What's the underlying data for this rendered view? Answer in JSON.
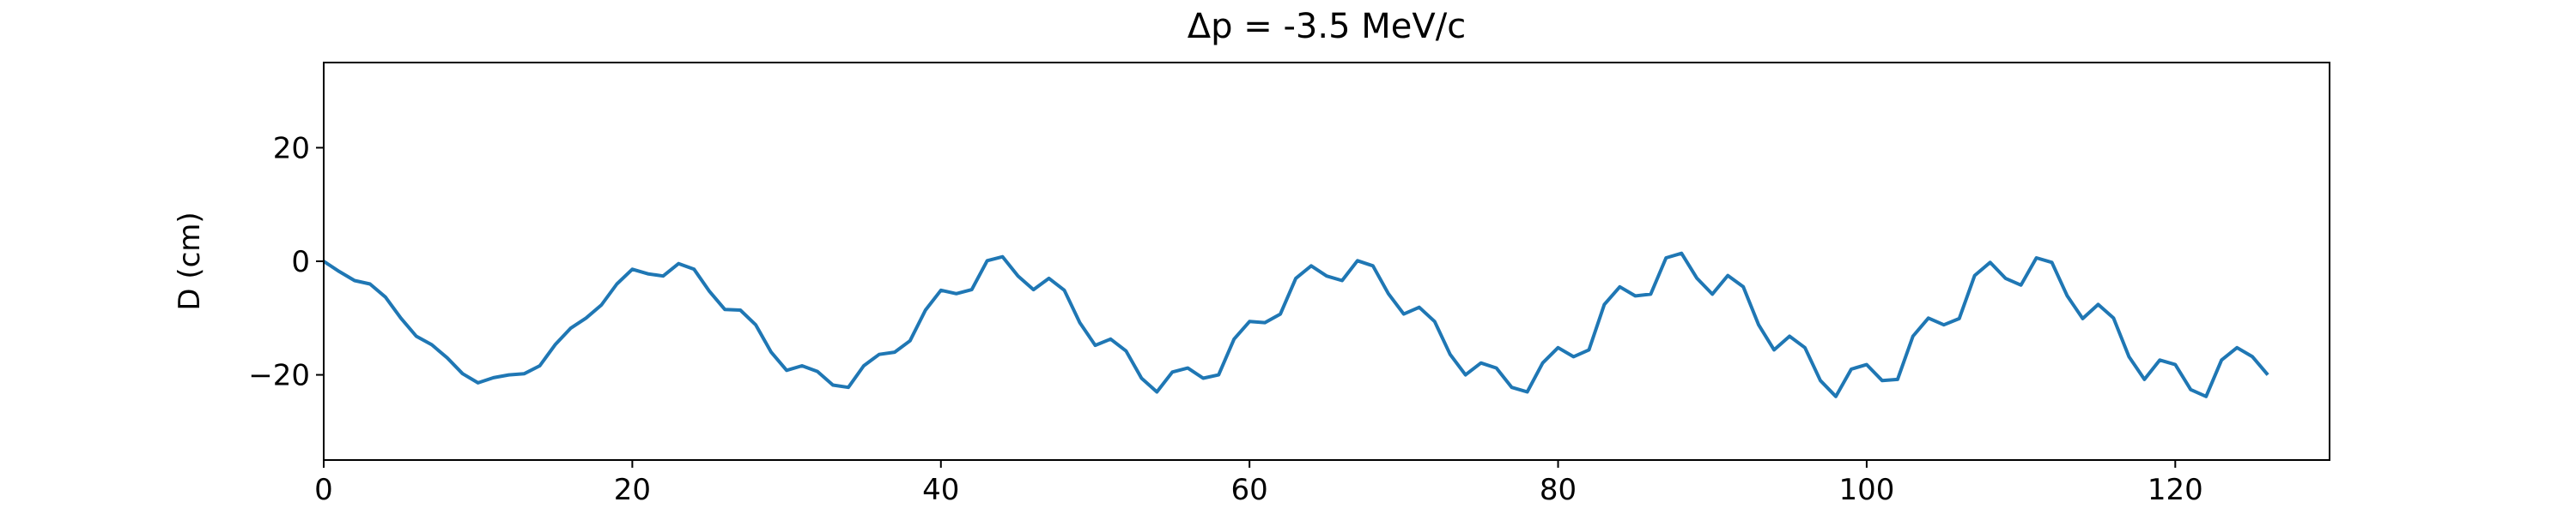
{
  "chart_data": {
    "type": "line",
    "title": "Δp = -3.5 MeV/c",
    "y_label": "D (cm)",
    "color": "#1f77b4",
    "x": [
      0,
      1,
      2,
      3,
      4,
      5,
      6,
      7,
      8,
      9,
      10,
      11,
      12,
      13,
      14,
      15,
      16,
      17,
      18,
      19,
      20,
      21,
      22,
      23,
      24,
      25,
      26,
      27,
      28,
      29,
      30,
      31,
      32,
      33,
      34,
      35,
      36,
      37,
      38,
      39,
      40,
      41,
      42,
      43,
      44,
      45,
      46,
      47,
      48,
      49,
      50,
      51,
      52,
      53,
      54,
      55,
      56,
      57,
      58,
      59,
      60,
      61,
      62,
      63,
      64,
      65,
      66,
      67,
      68,
      69,
      70,
      71,
      72,
      73,
      74,
      75,
      76,
      77,
      78,
      79,
      80,
      81,
      82,
      83,
      84,
      85,
      86,
      87,
      88,
      89,
      90,
      91,
      92,
      93,
      94,
      95,
      96,
      97,
      98,
      99,
      100,
      101,
      102,
      103,
      104,
      105,
      106,
      107,
      108,
      109,
      110,
      111,
      112,
      113,
      114,
      115,
      116,
      117,
      118,
      119,
      120,
      121,
      122,
      123,
      124,
      125,
      126
    ],
    "values": [
      0,
      -1.8,
      -3.4,
      -4,
      -6.3,
      -10,
      -13.2,
      -14.7,
      -17,
      -19.8,
      -21.4,
      -20.5,
      -20,
      -19.8,
      -18.4,
      -14.7,
      -11.8,
      -10,
      -7.7,
      -4,
      -1.4,
      -2.2,
      -2.6,
      -0.4,
      -1.4,
      -5.3,
      -8.5,
      -8.6,
      -11.2,
      -16,
      -19.2,
      -18.4,
      -19.4,
      -21.8,
      -22.2,
      -18.4,
      -16.4,
      -16,
      -14,
      -8.6,
      -5.1,
      -5.7,
      -5,
      0.1,
      0.8,
      -2.6,
      -5,
      -3,
      -5.1,
      -10.8,
      -14.8,
      -13.7,
      -15.8,
      -20.6,
      -23,
      -19.5,
      -18.8,
      -20.6,
      -20,
      -13.7,
      -10.6,
      -10.8,
      -9.3,
      -3,
      -0.8,
      -2.6,
      -3.4,
      0.1,
      -0.8,
      -5.7,
      -9.3,
      -8.1,
      -10.6,
      -16.4,
      -20,
      -17.9,
      -18.8,
      -22.2,
      -23,
      -17.9,
      -15.2,
      -16.8,
      -15.6,
      -7.6,
      -4.5,
      -6.1,
      -5.8,
      0.6,
      1.4,
      -3,
      -5.8,
      -2.5,
      -4.5,
      -11.2,
      -15.6,
      -13.2,
      -15.2,
      -21,
      -23.8,
      -19,
      -18.2,
      -21,
      -20.8,
      -13.2,
      -10,
      -11.2,
      -10.1,
      -2.5,
      -0.2,
      -3,
      -4.2,
      0.6,
      -0.2,
      -6.1,
      -10.1,
      -7.6,
      -10,
      -16.8,
      -20.8,
      -17.4,
      -18.2,
      -22.6,
      -23.8,
      -17.4,
      -15.2,
      -16.8,
      -20
    ],
    "xlim": [
      0,
      130
    ],
    "ylim": [
      -35,
      35
    ],
    "xticks": [
      0,
      20,
      40,
      60,
      80,
      100,
      120
    ],
    "yticks": [
      {
        "value": -20,
        "label": "−20"
      },
      0,
      20
    ]
  }
}
